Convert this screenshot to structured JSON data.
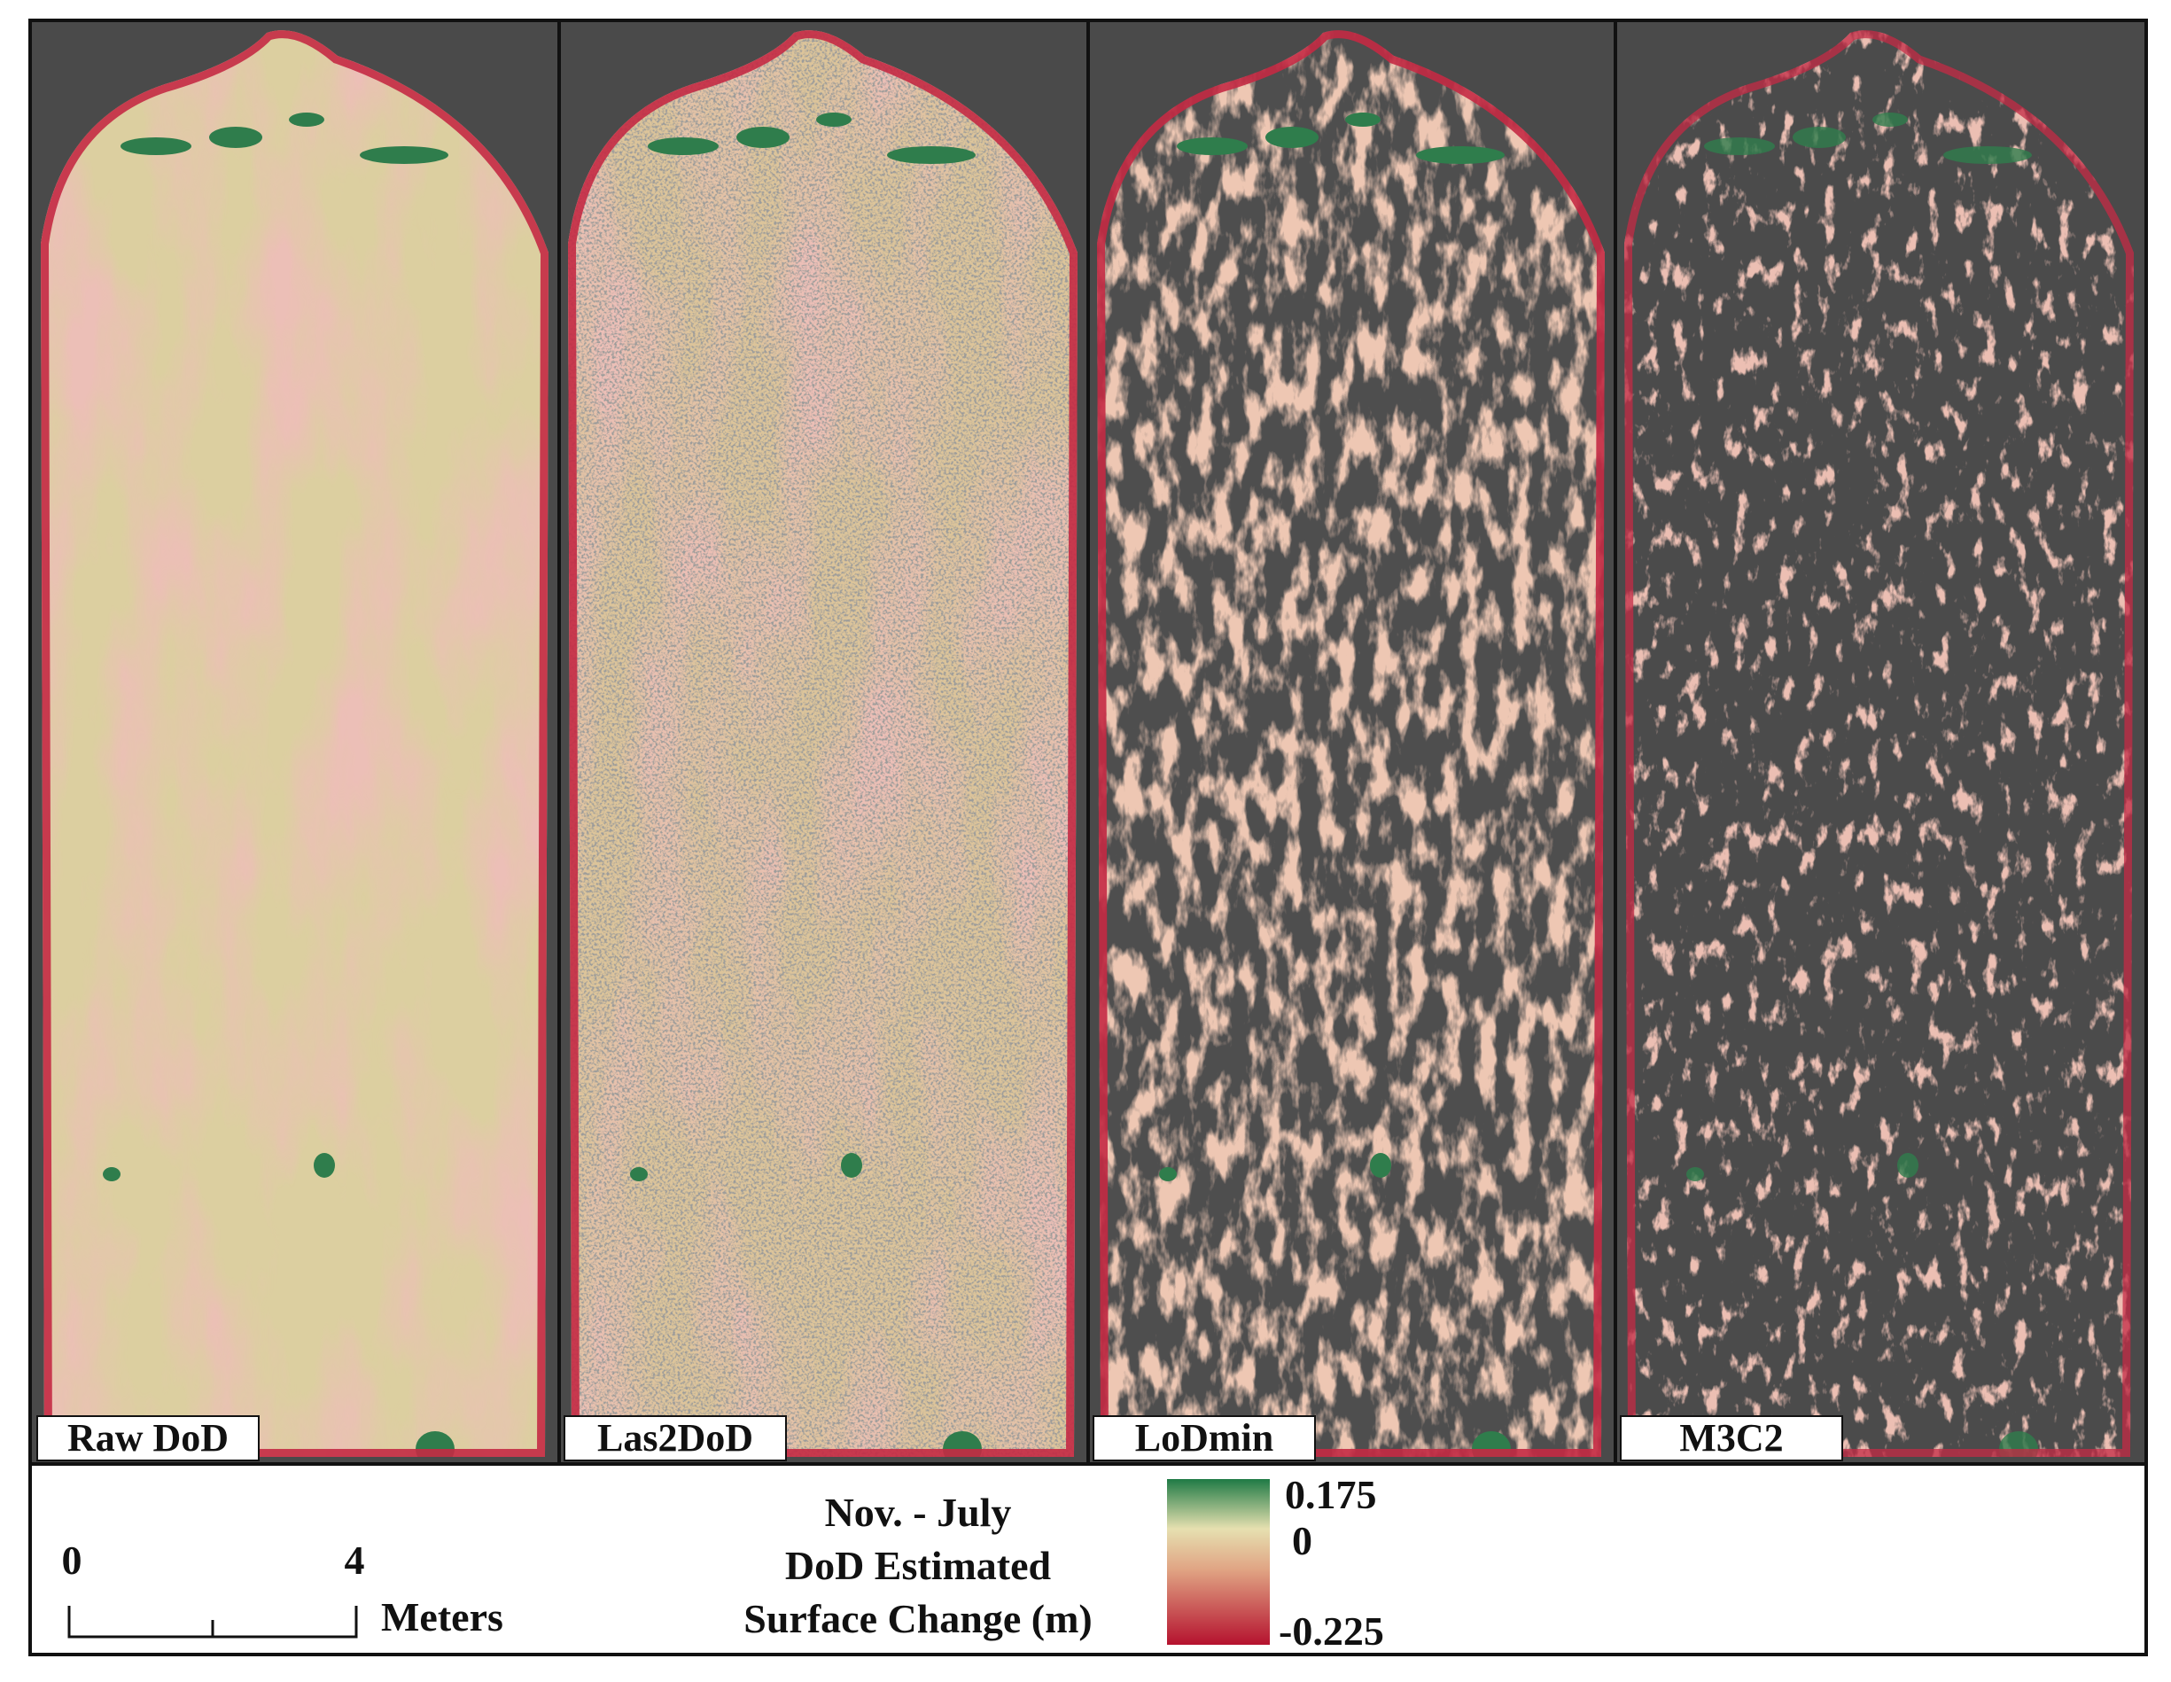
{
  "panels": [
    {
      "label": "Raw DoD"
    },
    {
      "label": "Las2DoD"
    },
    {
      "label": "LoDmin"
    },
    {
      "label": "M3C2"
    }
  ],
  "legend": {
    "title": [
      "Nov. - July",
      "DoD Estimated",
      "Surface Change (m)"
    ],
    "max": 0.175,
    "mid": 0,
    "min": -0.225
  },
  "scale_bar": {
    "start": 0,
    "end": 4,
    "unit": "Meters"
  }
}
